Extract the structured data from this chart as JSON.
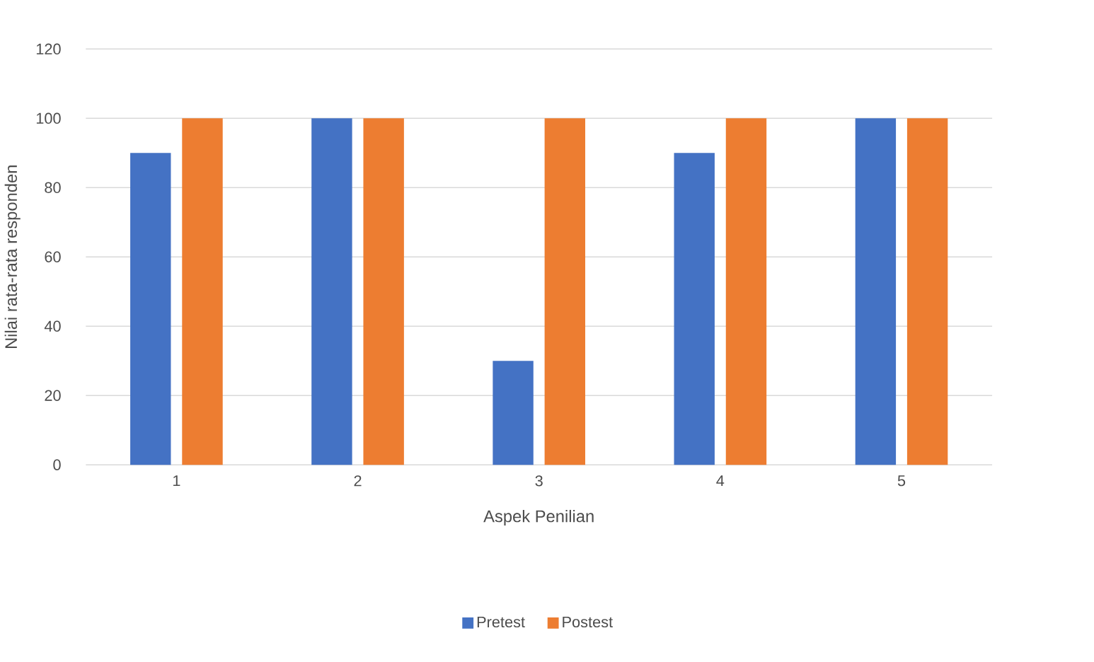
{
  "chart_data": {
    "type": "bar",
    "xlabel": "Aspek Penilian",
    "ylabel": "Nilai rata-rata responden",
    "categories": [
      "1",
      "2",
      "3",
      "4",
      "5"
    ],
    "series": [
      {
        "name": "Pretest",
        "color": "#4472c4",
        "values": [
          90,
          100,
          30,
          90,
          100
        ]
      },
      {
        "name": "Postest",
        "color": "#ed7d31",
        "values": [
          100,
          100,
          100,
          100,
          100
        ]
      }
    ],
    "ylim": [
      0,
      120
    ],
    "yticks": [
      0,
      20,
      40,
      60,
      80,
      100,
      120
    ],
    "grid": "y",
    "legend": "bottom"
  }
}
